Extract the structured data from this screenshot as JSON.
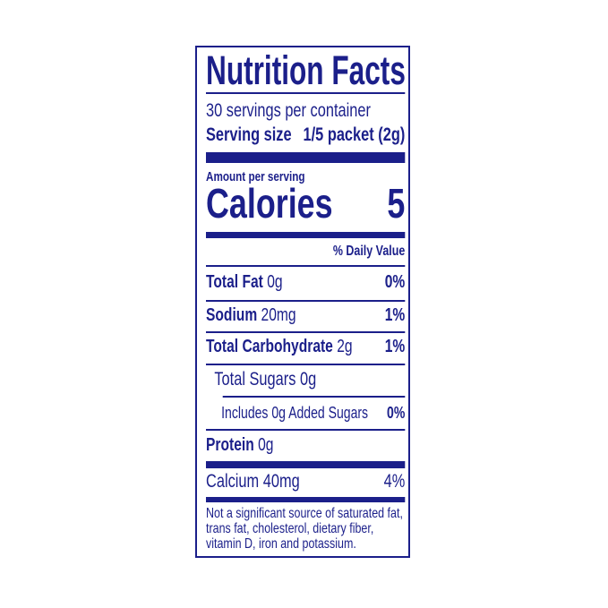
{
  "label": {
    "title": "Nutrition Facts",
    "servings_per_container": "30 servings per container",
    "serving_size_label": "Serving size",
    "serving_size_value": "1/5 packet (2g)",
    "amount_per_serving": "Amount per serving",
    "calories_label": "Calories",
    "calories_value": "5",
    "daily_value_header": "% Daily Value",
    "nutrients": [
      {
        "name": "Total Fat",
        "amount": "0g",
        "dv": "0%"
      },
      {
        "name": "Sodium",
        "amount": "20mg",
        "dv": "1%"
      },
      {
        "name": "Total Carbohydrate",
        "amount": "2g",
        "dv": "1%"
      },
      {
        "name": "Total Sugars",
        "amount": "0g",
        "dv": ""
      },
      {
        "name": "Includes 0g Added Sugars",
        "amount": "",
        "dv": "0%"
      },
      {
        "name": "Protein",
        "amount": "0g",
        "dv": ""
      }
    ],
    "vitamins": [
      {
        "name": "Calcium",
        "amount": "40mg",
        "dv": "4%"
      }
    ],
    "footnote": "Not a significant source of saturated fat, trans fat, cholesterol, dietary fiber, vitamin D, iron and potassium.",
    "color": "#1b1f8a"
  }
}
